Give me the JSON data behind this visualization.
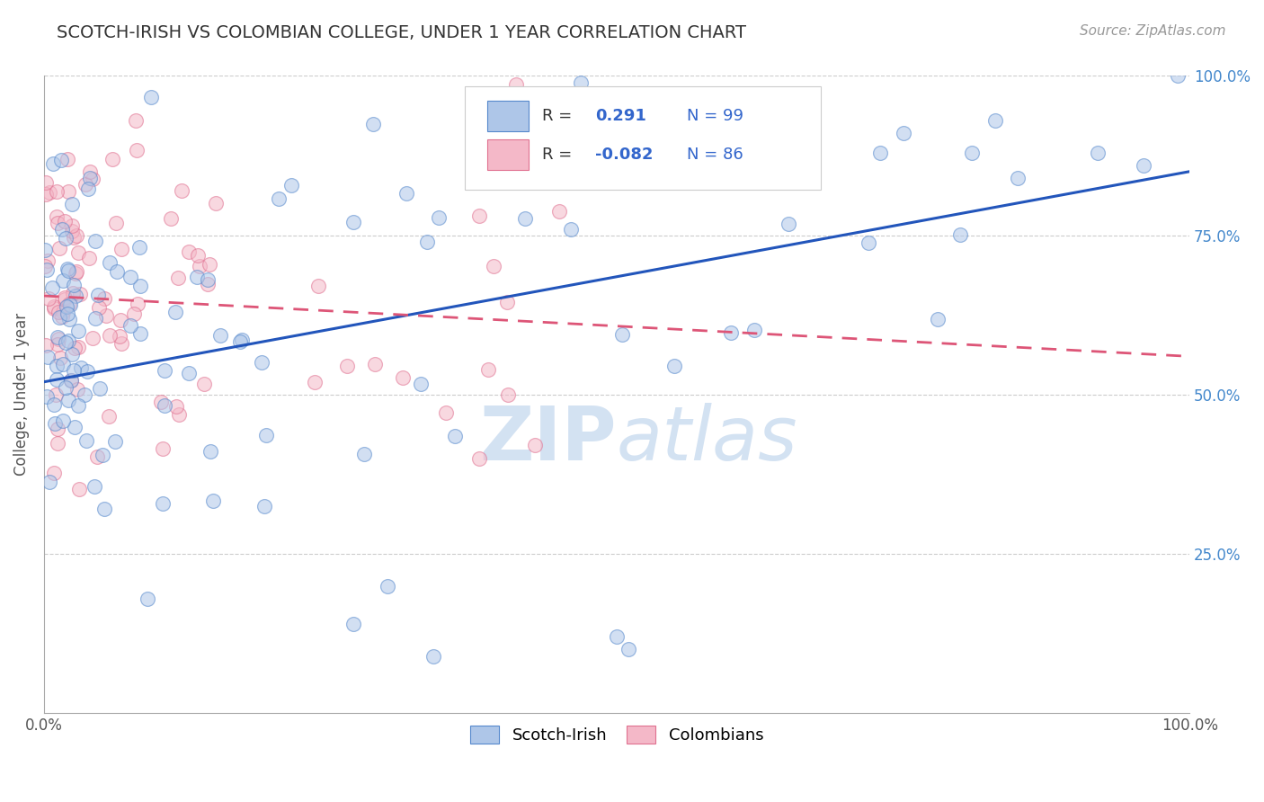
{
  "title": "SCOTCH-IRISH VS COLOMBIAN COLLEGE, UNDER 1 YEAR CORRELATION CHART",
  "source_text": "Source: ZipAtlas.com",
  "ylabel": "College, Under 1 year",
  "xlim": [
    0.0,
    1.0
  ],
  "ylim": [
    0.0,
    1.0
  ],
  "blue_R": 0.291,
  "blue_N": 99,
  "pink_R": -0.082,
  "pink_N": 86,
  "blue_color": "#aec6e8",
  "pink_color": "#f4b8c8",
  "blue_edge_color": "#5588cc",
  "pink_edge_color": "#e07090",
  "blue_line_color": "#2255bb",
  "pink_line_color": "#dd5577",
  "legend_blue_label": "Scotch-Irish",
  "legend_pink_label": "Colombians",
  "background_color": "#ffffff",
  "grid_color": "#cccccc",
  "title_color": "#333333",
  "watermark_color": "#ccddf0",
  "title_fontsize": 14,
  "axis_fontsize": 12,
  "legend_fontsize": 13,
  "source_fontsize": 11,
  "blue_line_start_y": 0.52,
  "blue_line_end_y": 0.85,
  "pink_line_start_y": 0.655,
  "pink_line_end_y": 0.56
}
